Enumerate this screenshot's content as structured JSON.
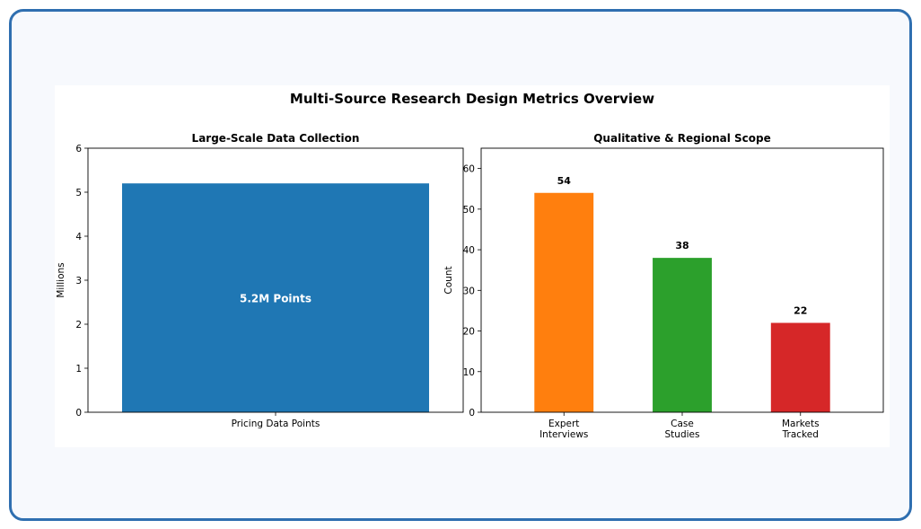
{
  "figure": {
    "suptitle": "Multi-Source Research Design Metrics Overview"
  },
  "chart_data": [
    {
      "type": "bar",
      "title": "Large-Scale Data Collection",
      "categories": [
        "Pricing Data Points"
      ],
      "values": [
        5.2
      ],
      "ylabel": "Millions",
      "xlabel": "",
      "ylim": [
        0,
        6
      ],
      "yticks": [
        0,
        1,
        2,
        3,
        4,
        5,
        6
      ],
      "bar_labels": [
        "5.2M Points"
      ],
      "colors": [
        "#1f77b4"
      ],
      "grid": false
    },
    {
      "type": "bar",
      "title": "Qualitative & Regional Scope",
      "categories": [
        [
          "Expert",
          "Interviews"
        ],
        [
          "Case",
          "Studies"
        ],
        [
          "Markets",
          "Tracked"
        ]
      ],
      "values": [
        54,
        38,
        22
      ],
      "ylabel": "Count",
      "xlabel": "",
      "ylim": [
        0,
        65
      ],
      "yticks": [
        0,
        10,
        20,
        30,
        40,
        50,
        60
      ],
      "bar_labels": [
        "54",
        "38",
        "22"
      ],
      "colors": [
        "#ff7f0e",
        "#2ca02c",
        "#d62728"
      ],
      "grid": false
    }
  ]
}
